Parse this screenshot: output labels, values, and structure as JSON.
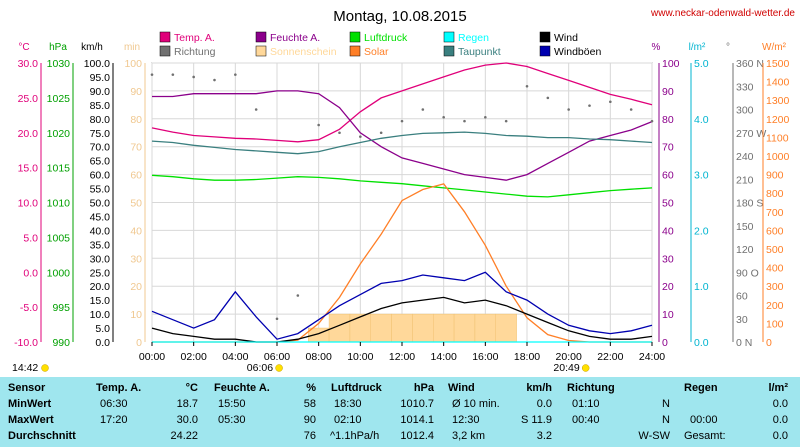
{
  "header": {
    "title": "Montag, 10.08.2015",
    "site": "www.neckar-odenwald-wetter.de"
  },
  "legend": [
    {
      "label": "Temp. A.",
      "color": "#e0007a"
    },
    {
      "label": "Feuchte A.",
      "color": "#8b008b"
    },
    {
      "label": "Luftdruck",
      "color": "#00e000"
    },
    {
      "label": "Regen",
      "color": "#00ffff"
    },
    {
      "label": "Wind",
      "color": "#000000"
    },
    {
      "label": "Richtung",
      "color": "#707070"
    },
    {
      "label": "Sonnenschein",
      "color": "#ffd89a"
    },
    {
      "label": "Solar",
      "color": "#ff7f27"
    },
    {
      "label": "Taupunkt",
      "color": "#3a7f7f"
    },
    {
      "label": "Windböen",
      "color": "#0000b0"
    }
  ],
  "axis_units": {
    "temp": "°C",
    "pressure": "hPa",
    "wind": "km/h",
    "sunshine": "min",
    "humidity": "%",
    "rain": "l/m²",
    "direction": "°",
    "solar": "W/m²"
  },
  "events": {
    "moonrise": "14:42",
    "sunrise": "06:06",
    "sunset": "20:49"
  },
  "chart_data": {
    "type": "line",
    "x": [
      "00:00",
      "01:00",
      "02:00",
      "03:00",
      "04:00",
      "05:00",
      "06:00",
      "07:00",
      "08:00",
      "09:00",
      "10:00",
      "11:00",
      "12:00",
      "13:00",
      "14:00",
      "15:00",
      "16:00",
      "17:00",
      "18:00",
      "19:00",
      "20:00",
      "21:00",
      "22:00",
      "23:00",
      "24:00"
    ],
    "xticks": [
      "00:00",
      "02:00",
      "04:00",
      "06:00",
      "08:00",
      "10:00",
      "12:00",
      "14:00",
      "16:00",
      "18:00",
      "20:00",
      "22:00",
      "24:00"
    ],
    "axes": {
      "temp": {
        "unit": "°C",
        "ylim": [
          -10,
          30
        ],
        "ticks": [
          "30.0",
          "25.0",
          "20.0",
          "15.0",
          "10.0",
          "5.0",
          "0.0",
          "-5.0",
          "-10.0"
        ]
      },
      "pressure": {
        "unit": "hPa",
        "ylim": [
          990,
          1030
        ],
        "ticks": [
          "1030",
          "1025",
          "1020",
          "1015",
          "1010",
          "1005",
          "1000",
          "995",
          "990"
        ]
      },
      "wind": {
        "unit": "km/h",
        "ylim": [
          0,
          100
        ],
        "ticks": [
          "100.0",
          "95.0",
          "90.0",
          "85.0",
          "80.0",
          "75.0",
          "70.0",
          "65.0",
          "60.0",
          "55.0",
          "50.0",
          "45.0",
          "40.0",
          "35.0",
          "30.0",
          "25.0",
          "20.0",
          "15.0",
          "10.0",
          "5.0",
          "0.0"
        ]
      },
      "sunshine": {
        "unit": "min",
        "ylim": [
          0,
          100
        ],
        "ticks": [
          "100",
          "90",
          "80",
          "70",
          "60",
          "50",
          "40",
          "30",
          "20",
          "10",
          "0"
        ]
      },
      "humidity": {
        "unit": "%",
        "ylim": [
          0,
          100
        ],
        "ticks": [
          "100",
          "90",
          "80",
          "70",
          "60",
          "50",
          "40",
          "30",
          "20",
          "10",
          "0"
        ]
      },
      "rain": {
        "unit": "l/m²",
        "ylim": [
          0,
          5
        ],
        "ticks": [
          "5.0",
          "4.0",
          "3.0",
          "2.0",
          "1.0",
          "0.0"
        ]
      },
      "direction": {
        "unit": "°",
        "ylim": [
          0,
          360
        ],
        "ticks": [
          "360 N",
          "330",
          "300",
          "270 W",
          "240",
          "210",
          "180 S",
          "150",
          "120",
          "90 O",
          "60",
          "30",
          "0 N"
        ]
      },
      "solar": {
        "unit": "W/m²",
        "ylim": [
          0,
          1500
        ],
        "ticks": [
          "1500",
          "1400",
          "1300",
          "1200",
          "1100",
          "1000",
          "900",
          "800",
          "700",
          "600",
          "500",
          "400",
          "300",
          "200",
          "100",
          "0"
        ]
      }
    },
    "series": [
      {
        "name": "Temp. A.",
        "axis": "temp",
        "color": "#e0007a",
        "values": [
          20.7,
          20.1,
          19.6,
          19.4,
          19.2,
          19.1,
          18.9,
          18.7,
          19.0,
          20.5,
          23.0,
          25.0,
          26.0,
          27.0,
          28.0,
          29.0,
          29.7,
          30.0,
          29.5,
          28.5,
          27.5,
          26.5,
          25.5,
          24.8,
          24.0
        ]
      },
      {
        "name": "Feuchte A.",
        "axis": "humidity",
        "color": "#8b008b",
        "values": [
          88,
          88,
          89,
          89,
          89,
          89,
          90,
          90,
          89,
          84,
          75,
          70,
          66,
          64,
          62,
          60,
          59,
          58,
          60,
          64,
          68,
          72,
          74,
          76,
          79
        ]
      },
      {
        "name": "Luftdruck",
        "axis": "pressure",
        "color": "#00e000",
        "values": [
          1013.9,
          1013.7,
          1013.4,
          1013.2,
          1013.2,
          1013.3,
          1013.5,
          1013.7,
          1013.6,
          1013.4,
          1013.1,
          1012.9,
          1012.7,
          1012.4,
          1012.1,
          1011.8,
          1011.5,
          1011.2,
          1010.9,
          1010.8,
          1011.1,
          1011.4,
          1011.7,
          1011.9,
          1012.1
        ]
      },
      {
        "name": "Taupunkt",
        "axis": "temp",
        "color": "#3a7f7f",
        "values": [
          18.8,
          18.6,
          18.2,
          17.9,
          17.6,
          17.4,
          17.2,
          17.0,
          17.3,
          18.0,
          18.6,
          19.2,
          19.6,
          19.9,
          20.0,
          20.1,
          19.9,
          19.6,
          19.5,
          19.3,
          19.3,
          19.1,
          19.0,
          18.8,
          18.6
        ]
      },
      {
        "name": "Solar",
        "axis": "solar",
        "color": "#ff7f27",
        "values": [
          0,
          0,
          0,
          0,
          0,
          0,
          0,
          10,
          100,
          240,
          420,
          580,
          760,
          820,
          850,
          700,
          520,
          300,
          130,
          40,
          8,
          0,
          0,
          0,
          0
        ]
      },
      {
        "name": "Wind",
        "axis": "wind",
        "color": "#000000",
        "values": [
          5,
          3,
          2,
          1,
          1,
          0,
          0,
          1,
          3,
          6,
          9,
          12,
          14,
          15,
          16,
          14,
          15,
          13,
          10,
          7,
          4,
          2,
          1,
          1,
          2
        ]
      },
      {
        "name": "Windböen",
        "axis": "wind",
        "color": "#0000b0",
        "values": [
          11,
          8,
          5,
          8,
          18,
          9,
          1,
          3,
          8,
          13,
          17,
          21,
          22,
          24,
          23,
          22,
          25,
          18,
          15,
          10,
          6,
          4,
          3,
          4,
          6
        ]
      },
      {
        "name": "Richtung",
        "axis": "direction",
        "color": "#707070",
        "values": [
          345,
          345,
          342,
          338,
          345,
          300,
          30,
          60,
          280,
          270,
          265,
          270,
          285,
          300,
          290,
          285,
          290,
          285,
          330,
          315,
          300,
          305,
          310,
          300,
          285
        ]
      },
      {
        "name": "Sonnenschein",
        "axis": "sunshine",
        "color": "#ffd89a",
        "values": [
          0,
          0,
          0,
          0,
          0,
          0,
          0,
          0,
          5,
          10,
          10,
          10,
          10,
          10,
          10,
          10,
          10,
          10,
          0,
          0,
          0,
          0,
          0,
          0,
          0
        ]
      },
      {
        "name": "Regen",
        "axis": "rain",
        "color": "#00ffff",
        "values": [
          0,
          0,
          0,
          0,
          0,
          0,
          0,
          0,
          0,
          0,
          0,
          0,
          0,
          0,
          0,
          0,
          0,
          0,
          0,
          0,
          0,
          0,
          0,
          0,
          0
        ]
      }
    ]
  },
  "summary": {
    "header": {
      "sensor": "Sensor",
      "temp": "Temp. A.",
      "temp_unit": "°C",
      "hum": "Feuchte A.",
      "hum_unit": "%",
      "press": "Luftdruck",
      "press_unit": "hPa",
      "wind": "Wind",
      "wind_unit": "km/h",
      "dir": "Richtung",
      "rain": "Regen",
      "rain_unit": "l/m²"
    },
    "min": {
      "label": "MinWert",
      "temp_time": "06:30",
      "temp_val": "18.7",
      "hum_time": "15:50",
      "hum_val": "58",
      "press_time": "18:30",
      "press_val": "1010.7",
      "wind_time": "Ø 10 min.",
      "wind_val": "0.0",
      "dir_time": "01:10",
      "dir_val": "N",
      "rain_time": "",
      "rain_val": "0.0"
    },
    "max": {
      "label": "MaxWert",
      "temp_time": "17:20",
      "temp_val": "30.0",
      "hum_time": "05:30",
      "hum_val": "90",
      "press_time": "02:10",
      "press_val": "1014.1",
      "wind_time": "12:30",
      "wind_val": "S 11.9",
      "dir_time": "00:40",
      "dir_val": "N",
      "rain_time": "00:00",
      "rain_val": "0.0"
    },
    "avg": {
      "label": "Durchschnitt",
      "temp_val": "24.22",
      "hum_val": "76",
      "press_time": "^1.1hPa/h",
      "press_val": "1012.4",
      "wind_time": "3,2 km",
      "wind_val": "3.2",
      "dir_val": "W-SW",
      "rain_time": "Gesamt:",
      "rain_val": "0.0"
    }
  }
}
